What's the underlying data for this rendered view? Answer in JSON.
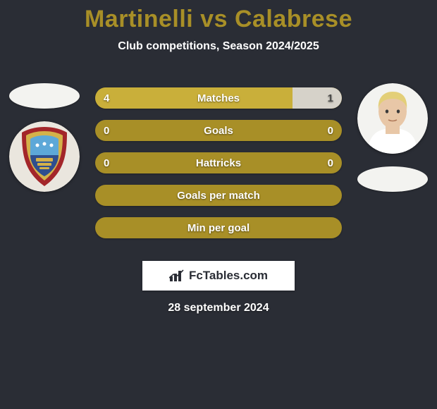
{
  "title": {
    "text": "Martinelli vs Calabrese",
    "color": "#a88f27",
    "fontsize": 34
  },
  "subtitle": {
    "text": "Club competitions, Season 2024/2025",
    "fontsize": 16
  },
  "background_color": "#2a2d35",
  "bar_base_color": "#a88f27",
  "left_fill_color": "#c9af3a",
  "right_fill_color": "#d6d2c9",
  "date": "28 september 2024",
  "watermark": "FcTables.com",
  "rows": [
    {
      "label": "Matches",
      "left": "4",
      "right": "1",
      "left_pct": 80,
      "right_pct": 20,
      "show_vals": true
    },
    {
      "label": "Goals",
      "left": "0",
      "right": "0",
      "left_pct": 0,
      "right_pct": 0,
      "show_vals": true
    },
    {
      "label": "Hattricks",
      "left": "0",
      "right": "0",
      "left_pct": 0,
      "right_pct": 0,
      "show_vals": true
    },
    {
      "label": "Goals per match",
      "left": "",
      "right": "",
      "left_pct": 0,
      "right_pct": 0,
      "show_vals": false
    },
    {
      "label": "Min per goal",
      "left": "",
      "right": "",
      "left_pct": 0,
      "right_pct": 0,
      "show_vals": false
    }
  ],
  "players": {
    "left": {
      "name": "Martinelli",
      "photo_bg": "#eae6de",
      "ellipse_pos": "top",
      "badge": {
        "outer": "#a3262a",
        "inner_top": "#5da8d8",
        "inner_bottom": "#2f4e8e",
        "ring": "#d4b24a"
      }
    },
    "right": {
      "name": "Calabrese",
      "photo_bg": "#f3f3f0",
      "ellipse_pos": "bottom",
      "face": {
        "skin": "#e8c7a7",
        "hair": "#e3cf78",
        "shirt": "#ffffff"
      }
    }
  }
}
